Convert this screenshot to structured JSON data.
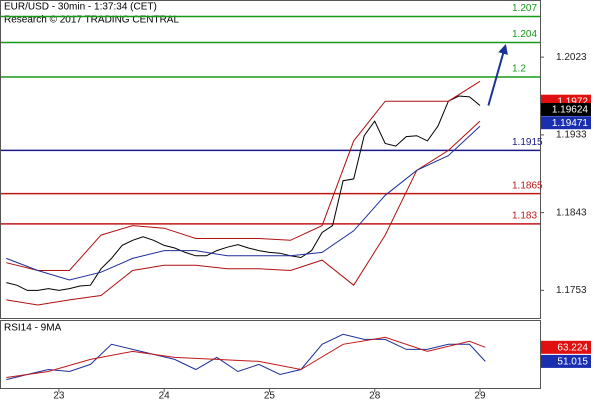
{
  "chart_data": [
    {
      "type": "line",
      "title": "EUR/USD - 30min - 1:37:34 (CET)",
      "subtitle": "Research © 2017 TRADING CENTRAL",
      "x": [
        0.5,
        0.6,
        0.7,
        0.8,
        0.9,
        1.0,
        1.1,
        1.2,
        1.3,
        1.4,
        1.5,
        1.6,
        1.7,
        1.8,
        1.9,
        2.0,
        2.1,
        2.2,
        2.3,
        2.4,
        2.5,
        2.6,
        2.7,
        2.8,
        2.9,
        3.0,
        3.1,
        3.2,
        3.3,
        3.4,
        3.5,
        3.6,
        3.7,
        3.8,
        3.9,
        4.0,
        4.1,
        4.2,
        4.3,
        4.4,
        4.5,
        4.6,
        4.7,
        4.8,
        4.9,
        5.0
      ],
      "xlim": [
        0.45,
        5.57
      ],
      "ylim": [
        1.1721,
        1.2088
      ],
      "yticks": [
        1.2023,
        1.1933,
        1.1843,
        1.1753
      ],
      "series": [
        {
          "color": "#000000",
          "values": [
            1.1762,
            1.1759,
            1.1753,
            1.1753,
            1.1755,
            1.1753,
            1.1755,
            1.1758,
            1.1759,
            1.1778,
            1.179,
            1.1805,
            1.1811,
            1.1815,
            1.1811,
            1.1805,
            1.1802,
            1.1797,
            1.1793,
            1.1793,
            1.1799,
            1.1803,
            1.1806,
            1.1802,
            1.1799,
            1.1797,
            1.1796,
            1.1793,
            1.1791,
            1.1799,
            1.182,
            1.1828,
            1.188,
            1.1882,
            1.1932,
            1.1949,
            1.1923,
            1.192,
            1.1931,
            1.1932,
            1.1926,
            1.1943,
            1.1972,
            1.1978,
            1.1977,
            1.1967
          ]
        },
        {
          "color": "#b01010",
          "x": [
            0.5,
            0.8,
            1.1,
            1.4,
            1.7,
            2.0,
            2.3,
            2.6,
            2.9,
            3.2,
            3.5,
            3.8,
            4.1,
            4.4,
            4.7,
            5.0
          ],
          "values": [
            1.1785,
            1.1776,
            1.1776,
            1.1817,
            1.1828,
            1.1825,
            1.1813,
            1.1813,
            1.1813,
            1.1811,
            1.1828,
            1.1926,
            1.1972,
            1.1972,
            1.1972,
            1.1995
          ]
        },
        {
          "color": "#b01010",
          "x": [
            0.5,
            0.8,
            1.1,
            1.4,
            1.7,
            2.0,
            2.3,
            2.6,
            2.9,
            3.2,
            3.5,
            3.8,
            4.1,
            4.4,
            4.7,
            5.0
          ],
          "values": [
            1.1742,
            1.1736,
            1.1742,
            1.1747,
            1.1776,
            1.1782,
            1.1782,
            1.1778,
            1.1778,
            1.1776,
            1.1788,
            1.1759,
            1.1817,
            1.1892,
            1.1915,
            1.1949
          ]
        },
        {
          "color": "#1f2f9a",
          "x": [
            0.5,
            0.8,
            1.1,
            1.4,
            1.7,
            2.0,
            2.3,
            2.6,
            2.9,
            3.2,
            3.5,
            3.8,
            4.1,
            4.4,
            4.7,
            5.0
          ],
          "values": [
            1.179,
            1.1776,
            1.1765,
            1.1774,
            1.179,
            1.1799,
            1.1799,
            1.1793,
            1.1793,
            1.1793,
            1.1797,
            1.1822,
            1.1863,
            1.1892,
            1.1909,
            1.1943
          ]
        },
        {
          "color": "#1a3399",
          "x": [
            5.08,
            5.24
          ],
          "values": [
            1.1967,
            1.2036
          ],
          "arrow": true
        }
      ],
      "levels": [
        {
          "value": 1.207,
          "color": "#169b16"
        },
        {
          "value": 1.204,
          "color": "#169b16"
        },
        {
          "value": 1.2,
          "color": "#169b16"
        },
        {
          "value": 1.1915,
          "color": "#1a1a8c"
        },
        {
          "value": 1.1865,
          "color": "#c01818"
        },
        {
          "value": 1.183,
          "color": "#c01818"
        }
      ],
      "markers": [
        {
          "value": 1.1972,
          "color": "#e01010"
        },
        {
          "value": 1.19624,
          "color": "#000000"
        },
        {
          "value": 1.19471,
          "color": "#1a2fb0"
        }
      ]
    },
    {
      "type": "line",
      "title": "RSI14 - 9MA",
      "xlim": [
        0.45,
        5.57
      ],
      "ylim": [
        28,
        86
      ],
      "xticks": [
        {
          "value": 1,
          "label": "23"
        },
        {
          "value": 2,
          "label": "24"
        },
        {
          "value": 3,
          "label": "25"
        },
        {
          "value": 4,
          "label": "28"
        },
        {
          "value": 5,
          "label": "29"
        }
      ],
      "series": [
        {
          "color": "#1f2f9a",
          "x": [
            0.5,
            0.7,
            0.9,
            1.1,
            1.3,
            1.5,
            1.7,
            1.9,
            2.1,
            2.3,
            2.5,
            2.7,
            2.9,
            3.1,
            3.3,
            3.5,
            3.7,
            3.9,
            4.1,
            4.3,
            4.5,
            4.7,
            4.9,
            5.05
          ],
          "values": [
            35.3,
            39.7,
            44.0,
            42.3,
            48.4,
            65.8,
            61.4,
            57.1,
            52.8,
            44.0,
            54.5,
            42.3,
            48.4,
            39.7,
            44.0,
            65.8,
            74.5,
            70.1,
            70.1,
            61.4,
            61.4,
            65.8,
            65.8,
            51.0
          ]
        },
        {
          "color": "#c01818",
          "x": [
            0.5,
            0.9,
            1.3,
            1.7,
            2.1,
            2.5,
            2.9,
            3.3,
            3.7,
            4.1,
            4.5,
            4.9,
            5.05
          ],
          "values": [
            37.1,
            42.3,
            52.8,
            59.7,
            54.5,
            52.8,
            51.0,
            44.0,
            65.8,
            71.9,
            59.7,
            68.4,
            63.2
          ]
        }
      ],
      "markers": [
        {
          "value": 63.224,
          "color": "#e01010"
        },
        {
          "value": 51.015,
          "color": "#1a2fb0"
        }
      ]
    }
  ]
}
